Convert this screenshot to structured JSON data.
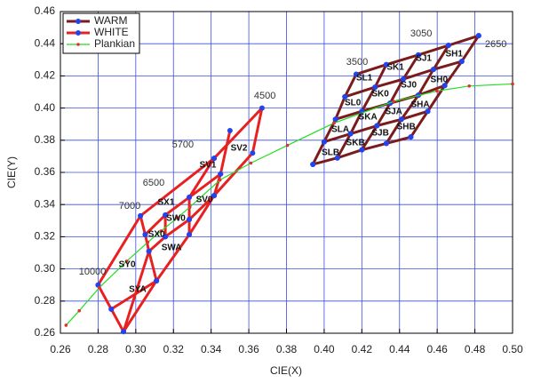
{
  "chart_data": {
    "type": "line",
    "xlabel": "CIE(X)",
    "ylabel": "CIE(Y)",
    "xlim": [
      0.26,
      0.5
    ],
    "ylim": [
      0.26,
      0.46
    ],
    "xticks": [
      0.26,
      0.28,
      {
        "value": 0.3,
        "label": "0.30"
      },
      0.32,
      0.34,
      0.36,
      0.38,
      {
        "value": 0.4,
        "label": "0.40"
      },
      0.42,
      0.44,
      0.46,
      0.48,
      {
        "value": 0.5,
        "label": "0.50"
      }
    ],
    "yticks": [
      0.26,
      0.28,
      {
        "value": 0.3,
        "label": "0.30"
      },
      0.32,
      0.34,
      0.36,
      0.38,
      {
        "value": 0.4,
        "label": "0.40"
      },
      0.42,
      0.44,
      0.46
    ],
    "grid": true,
    "legend": "top-left",
    "series": [
      {
        "name": "WARM",
        "color": "#7a1c1c",
        "marker_color": "#2244ee",
        "x": [
          0.394,
          0.407,
          0.42,
          0.433,
          0.446,
          null,
          0.4,
          0.414,
          0.428,
          0.441,
          0.455,
          null,
          0.406,
          0.42,
          0.435,
          0.45,
          0.464,
          null,
          0.411,
          0.427,
          0.442,
          0.458,
          0.473,
          null,
          0.417,
          0.433,
          0.45,
          0.466,
          0.482,
          null,
          0.394,
          0.4,
          0.406,
          0.411,
          0.417,
          null,
          0.407,
          0.414,
          0.42,
          0.427,
          0.433,
          null,
          0.42,
          0.428,
          0.435,
          0.442,
          0.45,
          null,
          0.433,
          0.441,
          0.45,
          0.458,
          0.466,
          null,
          0.446,
          0.455,
          0.464,
          0.473,
          0.482
        ],
        "y": [
          0.365,
          0.369,
          0.374,
          0.378,
          0.382,
          null,
          0.379,
          0.384,
          0.389,
          0.393,
          0.398,
          null,
          0.393,
          0.398,
          0.403,
          0.408,
          0.414,
          null,
          0.407,
          0.413,
          0.418,
          0.424,
          0.429,
          null,
          0.421,
          0.427,
          0.433,
          0.439,
          0.445,
          null,
          0.365,
          0.379,
          0.393,
          0.407,
          0.421,
          null,
          0.369,
          0.384,
          0.398,
          0.413,
          0.427,
          null,
          0.374,
          0.389,
          0.403,
          0.418,
          0.433,
          null,
          0.378,
          0.393,
          0.408,
          0.424,
          0.439,
          null,
          0.382,
          0.398,
          0.414,
          0.429,
          0.445
        ]
      },
      {
        "name": "WHITE",
        "color": "#e82020",
        "marker_color": "#2244ee",
        "x": [
          0.28,
          0.3025,
          0.3416,
          0.367,
          0.362,
          0.3416,
          0.3284,
          0.311,
          0.2935,
          0.287,
          0.28,
          null,
          0.35,
          0.345,
          0.3416,
          null,
          0.3416,
          0.3284,
          0.3284,
          0.3284,
          null,
          0.3025,
          0.305,
          0.307,
          0.2935,
          null,
          0.345,
          0.3284,
          0.3157,
          0.305,
          null,
          0.3416,
          0.3284,
          0.3157,
          0.307,
          0.311,
          null,
          0.3157,
          0.3157,
          null,
          0.287,
          0.311
        ],
        "y": [
          0.29,
          0.333,
          0.3688,
          0.4,
          0.372,
          0.3456,
          0.3213,
          0.2926,
          0.261,
          0.275,
          0.29,
          null,
          0.386,
          0.359,
          0.3456,
          null,
          0.3688,
          0.3445,
          0.3307,
          0.3213,
          null,
          0.333,
          0.3213,
          0.311,
          0.261,
          null,
          0.359,
          0.3445,
          0.3335,
          0.3213,
          null,
          0.3456,
          0.3307,
          0.32,
          0.311,
          0.2926,
          null,
          0.3335,
          0.32,
          null,
          0.275,
          0.2926
        ]
      },
      {
        "name": "Plankian",
        "color": "#22dd22",
        "marker_color": "#e03030",
        "x": [
          0.263,
          0.27,
          0.2807,
          0.2952,
          0.3064,
          0.3135,
          0.3221,
          0.3287,
          0.3447,
          0.3611,
          0.3805,
          0.4053,
          0.4369,
          0.4599,
          0.477,
          0.5
        ],
        "y": [
          0.265,
          0.274,
          0.2884,
          0.3048,
          0.3166,
          0.3236,
          0.3318,
          0.3384,
          0.3553,
          0.3658,
          0.3768,
          0.3907,
          0.4041,
          0.4106,
          0.4137,
          0.415
        ]
      }
    ],
    "cct_labels": [
      {
        "text": "3500",
        "x": 0.4175,
        "y": 0.4285
      },
      {
        "text": "3050",
        "x": 0.4515,
        "y": 0.4462
      },
      {
        "text": "2650",
        "x": 0.4911,
        "y": 0.4396
      },
      {
        "text": "4500",
        "x": 0.3685,
        "y": 0.4075
      },
      {
        "text": "5700",
        "x": 0.325,
        "y": 0.3771
      },
      {
        "text": "6500",
        "x": 0.3095,
        "y": 0.3534
      },
      {
        "text": "7000",
        "x": 0.2968,
        "y": 0.339
      },
      {
        "text": "10000",
        "x": 0.277,
        "y": 0.2981
      }
    ],
    "bin_labels": [
      {
        "text": "SL1",
        "x": 0.4213,
        "y": 0.4186
      },
      {
        "text": "SK1",
        "x": 0.4378,
        "y": 0.4252
      },
      {
        "text": "SJ1",
        "x": 0.4529,
        "y": 0.4307
      },
      {
        "text": "SH1",
        "x": 0.469,
        "y": 0.4335
      },
      {
        "text": "SL0",
        "x": 0.4152,
        "y": 0.4031
      },
      {
        "text": "SK0",
        "x": 0.4298,
        "y": 0.4086
      },
      {
        "text": "SJ0",
        "x": 0.4449,
        "y": 0.4141
      },
      {
        "text": "SH0",
        "x": 0.461,
        "y": 0.4175
      },
      {
        "text": "SLA",
        "x": 0.4086,
        "y": 0.3865
      },
      {
        "text": "SKA",
        "x": 0.4232,
        "y": 0.3943
      },
      {
        "text": "SJA",
        "x": 0.4369,
        "y": 0.3976
      },
      {
        "text": "SHA",
        "x": 0.451,
        "y": 0.402
      },
      {
        "text": "SLB",
        "x": 0.4034,
        "y": 0.3721
      },
      {
        "text": "SKB",
        "x": 0.4166,
        "y": 0.3782
      },
      {
        "text": "SJB",
        "x": 0.4298,
        "y": 0.3843
      },
      {
        "text": "SHB",
        "x": 0.4435,
        "y": 0.3882
      },
      {
        "text": "SV1",
        "x": 0.3383,
        "y": 0.3644
      },
      {
        "text": "SV2",
        "x": 0.3548,
        "y": 0.3749
      },
      {
        "text": "SX1",
        "x": 0.3161,
        "y": 0.3412
      },
      {
        "text": "SV0",
        "x": 0.3364,
        "y": 0.3429
      },
      {
        "text": "SW0",
        "x": 0.3213,
        "y": 0.3313
      },
      {
        "text": "SX0",
        "x": 0.311,
        "y": 0.3213
      },
      {
        "text": "SWA",
        "x": 0.319,
        "y": 0.313
      },
      {
        "text": "SY0",
        "x": 0.2954,
        "y": 0.3025
      },
      {
        "text": "SYA",
        "x": 0.301,
        "y": 0.2871
      }
    ]
  }
}
